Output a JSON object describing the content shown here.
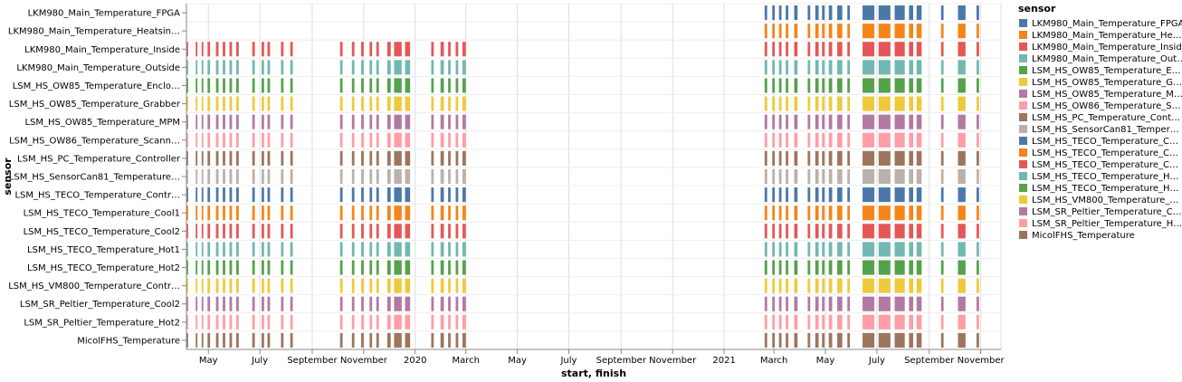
{
  "chart_data": {
    "type": "gantt",
    "title": "",
    "xlabel": "start, finish",
    "ylabel": "sensor",
    "x_ticks": [
      {
        "label": "May",
        "date": "2019-05-01"
      },
      {
        "label": "July",
        "date": "2019-07-01"
      },
      {
        "label": "September",
        "date": "2019-09-01"
      },
      {
        "label": "November",
        "date": "2019-11-01"
      },
      {
        "label": "2020",
        "date": "2020-01-01"
      },
      {
        "label": "March",
        "date": "2020-03-01"
      },
      {
        "label": "May",
        "date": "2020-05-01"
      },
      {
        "label": "July",
        "date": "2020-07-01"
      },
      {
        "label": "September",
        "date": "2020-09-01"
      },
      {
        "label": "November",
        "date": "2020-11-01"
      },
      {
        "label": "2021",
        "date": "2021-01-01"
      },
      {
        "label": "March",
        "date": "2021-03-01"
      },
      {
        "label": "May",
        "date": "2021-05-01"
      },
      {
        "label": "July",
        "date": "2021-07-01"
      },
      {
        "label": "September",
        "date": "2021-09-01"
      },
      {
        "label": "November",
        "date": "2021-11-01"
      }
    ],
    "x_domain": [
      "2019-04-05",
      "2021-11-25"
    ],
    "grid": true,
    "legend_title": "sensor",
    "legend_position": "right",
    "series": [
      {
        "name": "LKM980_Main_Temperature_FPGA",
        "y_label": "LKM980_Main_Temperature_FPGA",
        "legend_label": "LKM980_Main_Temperature_FPGA",
        "color": "#4c78a8"
      },
      {
        "name": "LKM980_Main_Temperature_Heatsink",
        "y_label": "LKM980_Main_Temperature_Heatsin…",
        "legend_label": "LKM980_Main_Temperature_He…",
        "color": "#f58518"
      },
      {
        "name": "LKM980_Main_Temperature_Inside",
        "y_label": "LKM980_Main_Temperature_Inside",
        "legend_label": "LKM980_Main_Temperature_Inside",
        "color": "#e45756"
      },
      {
        "name": "LKM980_Main_Temperature_Outside",
        "y_label": "LKM980_Main_Temperature_Outside",
        "legend_label": "LKM980_Main_Temperature_Out…",
        "color": "#72b7b2"
      },
      {
        "name": "LSM_HS_OW85_Temperature_Enclosure",
        "y_label": "LSM_HS_OW85_Temperature_Enclo…",
        "legend_label": "LSM_HS_OW85_Temperature_E…",
        "color": "#54a24b"
      },
      {
        "name": "LSM_HS_OW85_Temperature_Grabber",
        "y_label": "LSM_HS_OW85_Temperature_Grabber",
        "legend_label": "LSM_HS_OW85_Temperature_G…",
        "color": "#eeca3b"
      },
      {
        "name": "LSM_HS_OW85_Temperature_MPM",
        "y_label": "LSM_HS_OW85_Temperature_MPM",
        "legend_label": "LSM_HS_OW85_Temperature_M…",
        "color": "#b279a2"
      },
      {
        "name": "LSM_HS_OW86_Temperature_Scanner",
        "y_label": "LSM_HS_OW86_Temperature_Scann…",
        "legend_label": "LSM_HS_OW86_Temperature_S…",
        "color": "#ff9da6"
      },
      {
        "name": "LSM_HS_PC_Temperature_Controller",
        "y_label": "LSM_HS_PC_Temperature_Controller",
        "legend_label": "LSM_HS_PC_Temperature_Cont…",
        "color": "#9d755d"
      },
      {
        "name": "LSM_HS_SensorCan81_Temperature",
        "y_label": "LSM_HS_SensorCan81_Temperature…",
        "legend_label": "LSM_HS_SensorCan81_Temper…",
        "color": "#bab0ac"
      },
      {
        "name": "LSM_HS_TECO_Temperature_Controller",
        "y_label": "LSM_HS_TECO_Temperature_Contr…",
        "legend_label": "LSM_HS_TECO_Temperature_C…",
        "color": "#4c78a8"
      },
      {
        "name": "LSM_HS_TECO_Temperature_Cool1",
        "y_label": "LSM_HS_TECO_Temperature_Cool1",
        "legend_label": "LSM_HS_TECO_Temperature_C…",
        "color": "#f58518"
      },
      {
        "name": "LSM_HS_TECO_Temperature_Cool2",
        "y_label": "LSM_HS_TECO_Temperature_Cool2",
        "legend_label": "LSM_HS_TECO_Temperature_C…",
        "color": "#e45756"
      },
      {
        "name": "LSM_HS_TECO_Temperature_Hot1",
        "y_label": "LSM_HS_TECO_Temperature_Hot1",
        "legend_label": "LSM_HS_TECO_Temperature_H…",
        "color": "#72b7b2"
      },
      {
        "name": "LSM_HS_TECO_Temperature_Hot2",
        "y_label": "LSM_HS_TECO_Temperature_Hot2",
        "legend_label": "LSM_HS_TECO_Temperature_H…",
        "color": "#54a24b"
      },
      {
        "name": "LSM_HS_VM800_Temperature_Controller",
        "y_label": "LSM_HS_VM800_Temperature_Contr…",
        "legend_label": "LSM_HS_VM800_Temperature_…",
        "color": "#eeca3b"
      },
      {
        "name": "LSM_SR_Peltier_Temperature_Cool2",
        "y_label": "LSM_SR_Peltier_Temperature_Cool2",
        "legend_label": "LSM_SR_Peltier_Temperature_C…",
        "color": "#b279a2"
      },
      {
        "name": "LSM_SR_Peltier_Temperature_Hot2",
        "y_label": "LSM_SR_Peltier_Temperature_Hot2",
        "legend_label": "LSM_SR_Peltier_Temperature_H…",
        "color": "#ff9da6"
      },
      {
        "name": "MicolFHS_Temperature",
        "y_label": "MicolFHS_Temperature",
        "legend_label": "MicolFHS_Temperature",
        "color": "#9d755d"
      }
    ],
    "groups": {
      "legacy": [
        "LKM980_Main_Temperature_Inside",
        "LKM980_Main_Temperature_Outside",
        "LSM_HS_OW85_Temperature_Enclosure",
        "LSM_HS_OW85_Temperature_Grabber",
        "LSM_HS_OW85_Temperature_MPM",
        "LSM_HS_OW86_Temperature_Scanner",
        "LSM_HS_PC_Temperature_Controller",
        "LSM_HS_SensorCan81_Temperature",
        "LSM_HS_TECO_Temperature_Controller",
        "LSM_HS_TECO_Temperature_Cool1",
        "LSM_HS_TECO_Temperature_Cool2",
        "LSM_HS_TECO_Temperature_Hot1",
        "LSM_HS_TECO_Temperature_Hot2",
        "LSM_HS_VM800_Temperature_Controller",
        "LSM_SR_Peltier_Temperature_Cool2",
        "LSM_SR_Peltier_Temperature_Hot2",
        "MicolFHS_Temperature"
      ]
    },
    "intervals_legacy": [
      [
        "2019-04-05",
        "2019-04-07"
      ],
      [
        "2019-04-16",
        "2019-04-18"
      ],
      [
        "2019-04-23",
        "2019-04-25"
      ],
      [
        "2019-04-30",
        "2019-05-03"
      ],
      [
        "2019-05-10",
        "2019-05-13"
      ],
      [
        "2019-05-18",
        "2019-05-21"
      ],
      [
        "2019-05-26",
        "2019-05-29"
      ],
      [
        "2019-06-03",
        "2019-06-06"
      ],
      [
        "2019-06-22",
        "2019-06-25"
      ],
      [
        "2019-07-03",
        "2019-07-06"
      ],
      [
        "2019-07-10",
        "2019-07-13"
      ],
      [
        "2019-07-26",
        "2019-07-29"
      ],
      [
        "2019-08-06",
        "2019-08-09"
      ],
      [
        "2019-10-04",
        "2019-10-07"
      ],
      [
        "2019-10-18",
        "2019-10-21"
      ],
      [
        "2019-10-29",
        "2019-11-01"
      ],
      [
        "2019-11-08",
        "2019-11-11"
      ],
      [
        "2019-11-16",
        "2019-11-19"
      ],
      [
        "2019-11-29",
        "2019-12-03"
      ],
      [
        "2019-12-07",
        "2019-12-16"
      ],
      [
        "2019-12-20",
        "2019-12-26"
      ],
      [
        "2020-01-20",
        "2020-01-23"
      ],
      [
        "2020-01-31",
        "2020-02-04"
      ],
      [
        "2020-02-09",
        "2020-02-12"
      ],
      [
        "2020-02-18",
        "2020-02-21"
      ],
      [
        "2020-02-26",
        "2020-03-01"
      ]
    ],
    "intervals_recent": [
      [
        "2021-02-18",
        "2021-02-21"
      ],
      [
        "2021-02-27",
        "2021-03-02"
      ],
      [
        "2021-03-07",
        "2021-03-10"
      ],
      [
        "2021-03-15",
        "2021-03-18"
      ],
      [
        "2021-03-25",
        "2021-03-29"
      ],
      [
        "2021-04-10",
        "2021-04-13"
      ],
      [
        "2021-04-19",
        "2021-04-23"
      ],
      [
        "2021-04-27",
        "2021-04-30"
      ],
      [
        "2021-05-05",
        "2021-05-09"
      ],
      [
        "2021-05-15",
        "2021-05-21"
      ],
      [
        "2021-05-27",
        "2021-05-30"
      ],
      [
        "2021-06-14",
        "2021-06-28"
      ],
      [
        "2021-07-03",
        "2021-07-17"
      ],
      [
        "2021-07-22",
        "2021-08-03"
      ],
      [
        "2021-08-08",
        "2021-08-13"
      ],
      [
        "2021-08-17",
        "2021-08-23"
      ],
      [
        "2021-09-15",
        "2021-09-18"
      ],
      [
        "2021-10-05",
        "2021-10-14"
      ],
      [
        "2021-10-27",
        "2021-10-30"
      ]
    ]
  }
}
